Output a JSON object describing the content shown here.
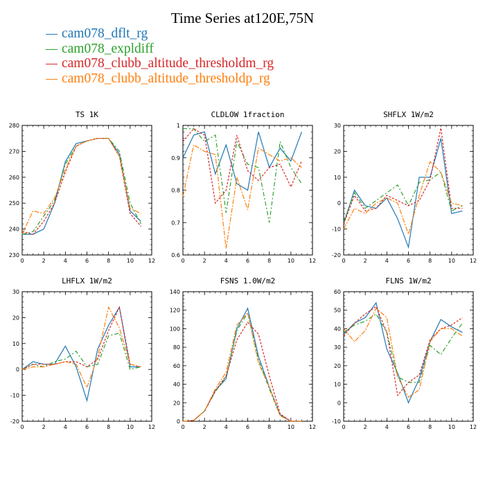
{
  "title": "Time Series at120E,75N",
  "legend": [
    {
      "label": "cam078_dflt_rg",
      "color": "#1f77b4",
      "dash": false
    },
    {
      "label": "cam078_expldiff",
      "color": "#2ca02c",
      "dash": true
    },
    {
      "label": "cam078_clubb_altitude_thresholdm_rg",
      "color": "#d62728",
      "dash": true
    },
    {
      "label": "cam078_clubb_altitude_thresholdp_rg",
      "color": "#ff7f0e",
      "dash": true
    }
  ],
  "chart_data": [
    {
      "type": "line",
      "title": "TS   1K",
      "x": [
        0,
        1,
        2,
        3,
        4,
        5,
        6,
        7,
        8,
        9,
        10,
        11
      ],
      "xlim": [
        0,
        12
      ],
      "xticks": [
        0,
        2,
        4,
        6,
        8,
        10,
        12
      ],
      "ylim": [
        230,
        280
      ],
      "yticks": [
        230,
        240,
        250,
        260,
        270,
        280
      ],
      "series": [
        {
          "name": "cam078_dflt_rg",
          "values": [
            238,
            238,
            240,
            250,
            266,
            273,
            274,
            275,
            275,
            269,
            247,
            243
          ]
        },
        {
          "name": "cam078_expldiff",
          "values": [
            238,
            239,
            245,
            251,
            265,
            272,
            274,
            275,
            275,
            270,
            250,
            242
          ]
        },
        {
          "name": "cam078_clubb_altitude_thresholdm_rg",
          "values": [
            239,
            238,
            243,
            250,
            262,
            272,
            274,
            275,
            275,
            268,
            246,
            241
          ]
        },
        {
          "name": "cam078_clubb_altitude_thresholdp_rg",
          "values": [
            238,
            247,
            246,
            252,
            263,
            272,
            274,
            275,
            275,
            268,
            248,
            246
          ]
        }
      ]
    },
    {
      "type": "line",
      "title": "CLDLOW   1fraction",
      "x": [
        0,
        1,
        2,
        3,
        4,
        5,
        6,
        7,
        8,
        9,
        10,
        11
      ],
      "xlim": [
        0,
        12
      ],
      "xticks": [
        0,
        2,
        4,
        6,
        8,
        10,
        12
      ],
      "ylim": [
        0.6,
        1
      ],
      "yticks": [
        0.6,
        0.7,
        0.8,
        0.9,
        1
      ],
      "series": [
        {
          "name": "cam078_dflt_rg",
          "values": [
            0.9,
            0.97,
            0.98,
            0.85,
            0.94,
            0.82,
            0.8,
            0.98,
            0.87,
            0.93,
            0.89,
            0.98
          ]
        },
        {
          "name": "cam078_expldiff",
          "values": [
            0.99,
            0.99,
            0.95,
            0.97,
            0.73,
            0.95,
            0.88,
            0.87,
            0.7,
            0.95,
            0.87,
            0.82
          ]
        },
        {
          "name": "cam078_clubb_altitude_thresholdm_rg",
          "values": [
            0.95,
            0.99,
            0.97,
            0.76,
            0.8,
            0.97,
            0.86,
            0.83,
            0.87,
            0.88,
            0.81,
            0.89
          ]
        },
        {
          "name": "cam078_clubb_altitude_thresholdp_rg",
          "values": [
            0.78,
            0.94,
            0.92,
            0.91,
            0.62,
            0.84,
            0.74,
            0.93,
            0.91,
            0.89,
            0.9,
            0.87
          ]
        }
      ]
    },
    {
      "type": "line",
      "title": "SHFLX   1W/m2",
      "x": [
        0,
        1,
        2,
        3,
        4,
        5,
        6,
        7,
        8,
        9,
        10,
        11
      ],
      "xlim": [
        0,
        12
      ],
      "xticks": [
        0,
        2,
        4,
        6,
        8,
        10,
        12
      ],
      "ylim": [
        -20,
        30
      ],
      "yticks": [
        -20,
        -10,
        0,
        10,
        20,
        30
      ],
      "series": [
        {
          "name": "cam078_dflt_rg",
          "values": [
            -8,
            5,
            -1,
            -2,
            2,
            -6,
            -17,
            10,
            10,
            25,
            -4,
            -3
          ]
        },
        {
          "name": "cam078_expldiff",
          "values": [
            -7,
            4,
            -2,
            1,
            4,
            7,
            -1,
            8,
            9,
            12,
            -3,
            -1
          ]
        },
        {
          "name": "cam078_clubb_altitude_thresholdm_rg",
          "values": [
            -8,
            3,
            -3,
            -2,
            3,
            1,
            -1,
            1,
            9,
            29,
            -2,
            -2
          ]
        },
        {
          "name": "cam078_clubb_altitude_thresholdp_rg",
          "values": [
            -10,
            -2,
            -4,
            0,
            2,
            0,
            -12,
            3,
            16,
            12,
            0,
            -1
          ]
        }
      ]
    },
    {
      "type": "line",
      "title": "LHFLX   1W/m2",
      "x": [
        0,
        1,
        2,
        3,
        4,
        5,
        6,
        7,
        8,
        9,
        10,
        11
      ],
      "xlim": [
        0,
        12
      ],
      "xticks": [
        0,
        2,
        4,
        6,
        8,
        10,
        12
      ],
      "ylim": [
        -20,
        30
      ],
      "yticks": [
        -20,
        -10,
        0,
        10,
        20,
        30
      ],
      "series": [
        {
          "name": "cam078_dflt_rg",
          "values": [
            0,
            3,
            2,
            2,
            9,
            1,
            -12,
            8,
            17,
            24,
            1,
            1
          ]
        },
        {
          "name": "cam078_expldiff",
          "values": [
            0,
            2,
            1,
            3,
            4,
            7,
            1,
            2,
            13,
            14,
            0,
            1
          ]
        },
        {
          "name": "cam078_clubb_altitude_thresholdm_rg",
          "values": [
            0,
            2,
            2,
            2,
            3,
            3,
            1,
            4,
            15,
            24,
            2,
            1
          ]
        },
        {
          "name": "cam078_clubb_altitude_thresholdp_rg",
          "values": [
            0,
            1,
            1,
            2,
            3,
            2,
            -7,
            5,
            24,
            16,
            2,
            1
          ]
        }
      ]
    },
    {
      "type": "line",
      "title": "FSNS   1.0W/m2",
      "x": [
        0,
        1,
        2,
        3,
        4,
        5,
        6,
        7,
        8,
        9,
        10,
        11
      ],
      "xlim": [
        0,
        12
      ],
      "xticks": [
        0,
        2,
        4,
        6,
        8,
        10,
        12
      ],
      "ylim": [
        0,
        140
      ],
      "yticks": [
        0,
        20,
        40,
        60,
        80,
        100,
        120,
        140
      ],
      "series": [
        {
          "name": "cam078_dflt_rg",
          "values": [
            0,
            1,
            11,
            33,
            46,
            100,
            122,
            70,
            37,
            7,
            0,
            0
          ]
        },
        {
          "name": "cam078_expldiff",
          "values": [
            0,
            1,
            11,
            32,
            48,
            98,
            117,
            66,
            35,
            6,
            0,
            0
          ]
        },
        {
          "name": "cam078_clubb_altitude_thresholdm_rg",
          "values": [
            0,
            1,
            11,
            33,
            49,
            88,
            107,
            94,
            49,
            8,
            0,
            0
          ]
        },
        {
          "name": "cam078_clubb_altitude_thresholdp_rg",
          "values": [
            0,
            1,
            11,
            35,
            53,
            104,
            117,
            63,
            37,
            6,
            0,
            0
          ]
        }
      ]
    },
    {
      "type": "line",
      "title": "FLNS   1W/m2",
      "x": [
        0,
        1,
        2,
        3,
        4,
        5,
        6,
        7,
        8,
        9,
        10,
        11
      ],
      "xlim": [
        0,
        12
      ],
      "xticks": [
        0,
        2,
        4,
        6,
        8,
        10,
        12
      ],
      "ylim": [
        -10,
        60
      ],
      "yticks": [
        -10,
        0,
        10,
        20,
        30,
        40,
        50,
        60
      ],
      "series": [
        {
          "name": "cam078_dflt_rg",
          "values": [
            37,
            43,
            46,
            54,
            29,
            16,
            0,
            13,
            33,
            45,
            41,
            38
          ]
        },
        {
          "name": "cam078_expldiff",
          "values": [
            38,
            42,
            44,
            48,
            38,
            14,
            11,
            11,
            31,
            26,
            35,
            43
          ]
        },
        {
          "name": "cam078_clubb_altitude_thresholdm_rg",
          "values": [
            36,
            43,
            48,
            52,
            38,
            4,
            11,
            15,
            34,
            40,
            42,
            46
          ]
        },
        {
          "name": "cam078_clubb_altitude_thresholdp_rg",
          "values": [
            40,
            33,
            39,
            51,
            46,
            14,
            3,
            7,
            33,
            40,
            40,
            36
          ]
        }
      ]
    }
  ]
}
